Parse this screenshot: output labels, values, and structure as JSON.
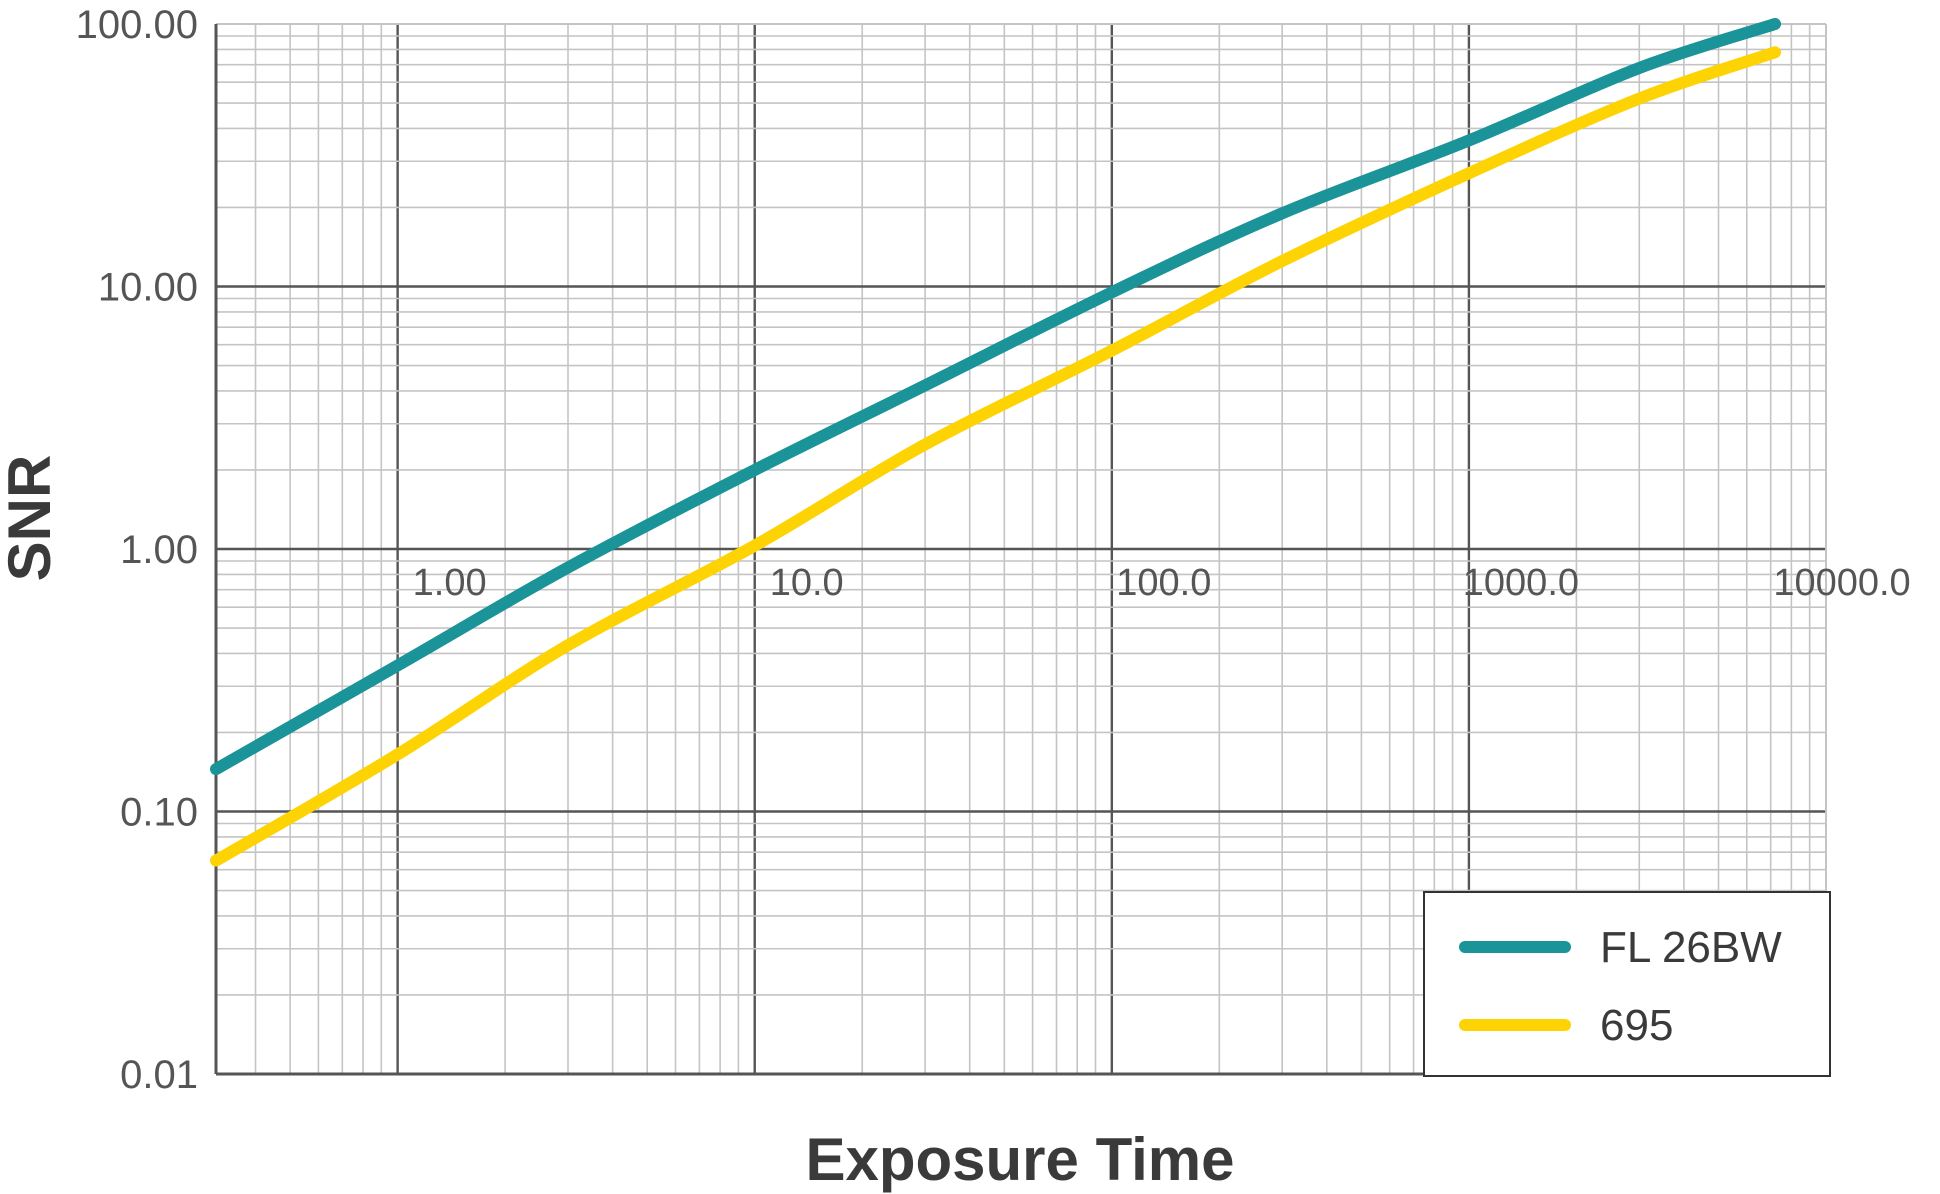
{
  "chart_data": {
    "type": "line",
    "xlabel": "Exposure Time",
    "ylabel": "SNR",
    "x_scale": "log",
    "y_scale": "log",
    "xlim": [
      0.31,
      10000
    ],
    "ylim": [
      0.01,
      100
    ],
    "grid": true,
    "legend_position": "bottom-right",
    "x_ticks": [
      {
        "value": 1,
        "label": "1.00"
      },
      {
        "value": 10,
        "label": "10.0"
      },
      {
        "value": 100,
        "label": "100.0"
      },
      {
        "value": 1000,
        "label": "1000.0"
      },
      {
        "value": 10000,
        "label": "10000.0"
      }
    ],
    "y_ticks": [
      {
        "value": 0.01,
        "label": "0.01"
      },
      {
        "value": 0.1,
        "label": "0.10"
      },
      {
        "value": 1,
        "label": "1.00"
      },
      {
        "value": 10,
        "label": "10.00"
      },
      {
        "value": 100,
        "label": "100.00"
      }
    ],
    "series": [
      {
        "name": "FL 26BW",
        "color": "#1a9399",
        "x": [
          0.31,
          1,
          3,
          10,
          30,
          100,
          300,
          1000,
          3000,
          7200
        ],
        "y": [
          0.145,
          0.36,
          0.85,
          2.0,
          4.2,
          9.5,
          19,
          36,
          68,
          100
        ]
      },
      {
        "name": "695",
        "color": "#fed304",
        "x": [
          0.31,
          1,
          3,
          10,
          30,
          100,
          300,
          1000,
          3000,
          7200
        ],
        "y": [
          0.065,
          0.165,
          0.43,
          1.03,
          2.5,
          5.7,
          12.5,
          27,
          52,
          78
        ]
      }
    ]
  }
}
